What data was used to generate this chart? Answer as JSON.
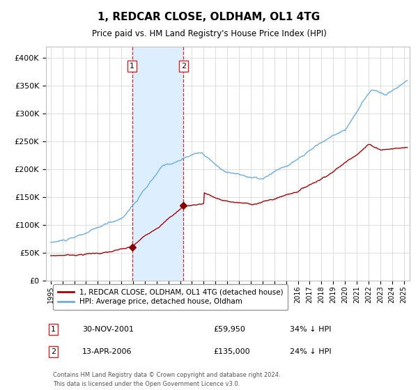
{
  "title": "1, REDCAR CLOSE, OLDHAM, OL1 4TG",
  "subtitle": "Price paid vs. HM Land Registry's House Price Index (HPI)",
  "ylim": [
    0,
    420000
  ],
  "yticks": [
    0,
    50000,
    100000,
    150000,
    200000,
    250000,
    300000,
    350000,
    400000
  ],
  "ytick_labels": [
    "£0",
    "£50K",
    "£100K",
    "£150K",
    "£200K",
    "£250K",
    "£300K",
    "£350K",
    "£400K"
  ],
  "hpi_color": "#6aaee0",
  "price_color": "#aa0000",
  "marker_color": "#880000",
  "shade_color": "#ddeeff",
  "vline_color": "#dd2222",
  "t1_x": 2001.92,
  "t1_price": 59950,
  "t1_label": "30-NOV-2001",
  "t1_pct": "34% ↓ HPI",
  "t2_x": 2006.28,
  "t2_price": 135000,
  "t2_label": "13-APR-2006",
  "t2_pct": "24% ↓ HPI",
  "legend_line1": "1, REDCAR CLOSE, OLDHAM, OL1 4TG (detached house)",
  "legend_line2": "HPI: Average price, detached house, Oldham",
  "footnote1": "Contains HM Land Registry data © Crown copyright and database right 2024.",
  "footnote2": "This data is licensed under the Open Government Licence v3.0.",
  "xmin": 1994.6,
  "xmax": 2025.5
}
